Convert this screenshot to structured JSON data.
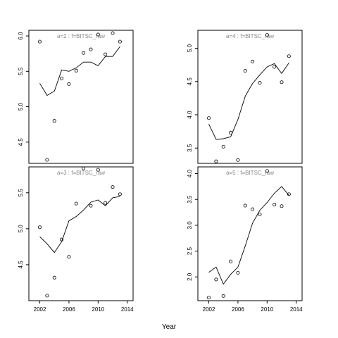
{
  "figure": {
    "xlabel": "Year",
    "x_ticks": [
      2002,
      2006,
      2010,
      2014
    ],
    "x_tick_labels": [
      "2002",
      "2006",
      "2010",
      "2014"
    ]
  },
  "chart_data": [
    {
      "type": "scatter",
      "title": "a=2  :  f=BITSC_raw",
      "xlim": [
        2000.5,
        2014.8
      ],
      "ylim": [
        4.2,
        6.08
      ],
      "y_ticks": [
        4.5,
        5.0,
        5.5,
        6.0
      ],
      "y_tick_labels": [
        "4.5",
        "5.0",
        "5.5",
        "6.0"
      ],
      "series": [
        {
          "kind": "points",
          "x": [
            2002,
            2003,
            2004,
            2005,
            2006,
            2007,
            2008,
            2009,
            2010,
            2011,
            2012,
            2013
          ],
          "y": [
            5.92,
            4.25,
            4.8,
            5.4,
            5.32,
            5.51,
            5.76,
            5.81,
            6.02,
            5.74,
            6.04,
            5.92
          ]
        },
        {
          "kind": "line",
          "x": [
            2002,
            2003,
            2004,
            2005,
            2006,
            2007,
            2008,
            2009,
            2010,
            2011,
            2012,
            2013
          ],
          "y": [
            5.33,
            5.16,
            5.22,
            5.52,
            5.5,
            5.55,
            5.63,
            5.63,
            5.58,
            5.71,
            5.71,
            5.85
          ]
        }
      ]
    },
    {
      "type": "scatter",
      "title": "a=4  :  f=BITSC_raw",
      "xlim": [
        2000.5,
        2014.8
      ],
      "ylim": [
        3.27,
        5.27
      ],
      "y_ticks": [
        3.5,
        4.0,
        4.5,
        5.0
      ],
      "y_tick_labels": [
        "3.5",
        "4.0",
        "4.5",
        "5.0"
      ],
      "series": [
        {
          "kind": "points",
          "x": [
            2002,
            2003,
            2004,
            2005,
            2006,
            2007,
            2008,
            2009,
            2010,
            2011,
            2012,
            2013
          ],
          "y": [
            3.95,
            3.3,
            3.52,
            3.73,
            3.32,
            4.66,
            4.8,
            4.48,
            5.2,
            4.72,
            4.49,
            4.88
          ]
        },
        {
          "kind": "line",
          "x": [
            2002,
            2003,
            2004,
            2005,
            2006,
            2007,
            2008,
            2009,
            2010,
            2011,
            2012,
            2013
          ],
          "y": [
            3.86,
            3.63,
            3.64,
            3.67,
            3.93,
            4.28,
            4.47,
            4.6,
            4.72,
            4.77,
            4.62,
            4.78
          ]
        }
      ]
    },
    {
      "type": "scatter",
      "title": "a=3  :  f=BITSC_raw",
      "xlim": [
        2000.5,
        2014.8
      ],
      "ylim": [
        4.0,
        5.86
      ],
      "y_ticks": [
        4.5,
        5.0,
        5.5
      ],
      "y_tick_labels": [
        "4.5",
        "5.0",
        "5.5"
      ],
      "series": [
        {
          "kind": "points",
          "x": [
            2002,
            2003,
            2004,
            2005,
            2006,
            2007,
            2008,
            2009,
            2010,
            2011,
            2012,
            2013
          ],
          "y": [
            5.02,
            4.07,
            4.32,
            4.85,
            4.61,
            5.35,
            5.84,
            5.32,
            5.82,
            5.36,
            5.58,
            5.48
          ]
        },
        {
          "kind": "line",
          "x": [
            2002,
            2003,
            2004,
            2005,
            2006,
            2007,
            2008,
            2009,
            2010,
            2011,
            2012,
            2013
          ],
          "y": [
            4.89,
            4.79,
            4.67,
            4.82,
            5.11,
            5.17,
            5.26,
            5.37,
            5.4,
            5.32,
            5.43,
            5.45
          ]
        }
      ]
    },
    {
      "type": "scatter",
      "title": "a=5  :  f=BITSC_raw",
      "xlim": [
        2000.5,
        2014.8
      ],
      "ylim": [
        1.54,
        4.13
      ],
      "y_ticks": [
        2.0,
        2.5,
        3.0,
        3.5,
        4.0
      ],
      "y_tick_labels": [
        "2.0",
        "2.5",
        "3.0",
        "3.5",
        "4.0"
      ],
      "series": [
        {
          "kind": "points",
          "x": [
            2002,
            2003,
            2004,
            2005,
            2006,
            2007,
            2008,
            2009,
            2010,
            2011,
            2012,
            2013
          ],
          "y": [
            1.6,
            1.95,
            1.63,
            2.3,
            2.08,
            3.38,
            3.31,
            3.21,
            4.05,
            3.4,
            3.37,
            3.6
          ]
        },
        {
          "kind": "line",
          "x": [
            2002,
            2003,
            2004,
            2005,
            2006,
            2007,
            2008,
            2009,
            2010,
            2011,
            2012,
            2013
          ],
          "y": [
            2.09,
            2.19,
            1.86,
            2.05,
            2.19,
            2.6,
            3.04,
            3.29,
            3.44,
            3.62,
            3.75,
            3.58
          ]
        }
      ]
    }
  ]
}
